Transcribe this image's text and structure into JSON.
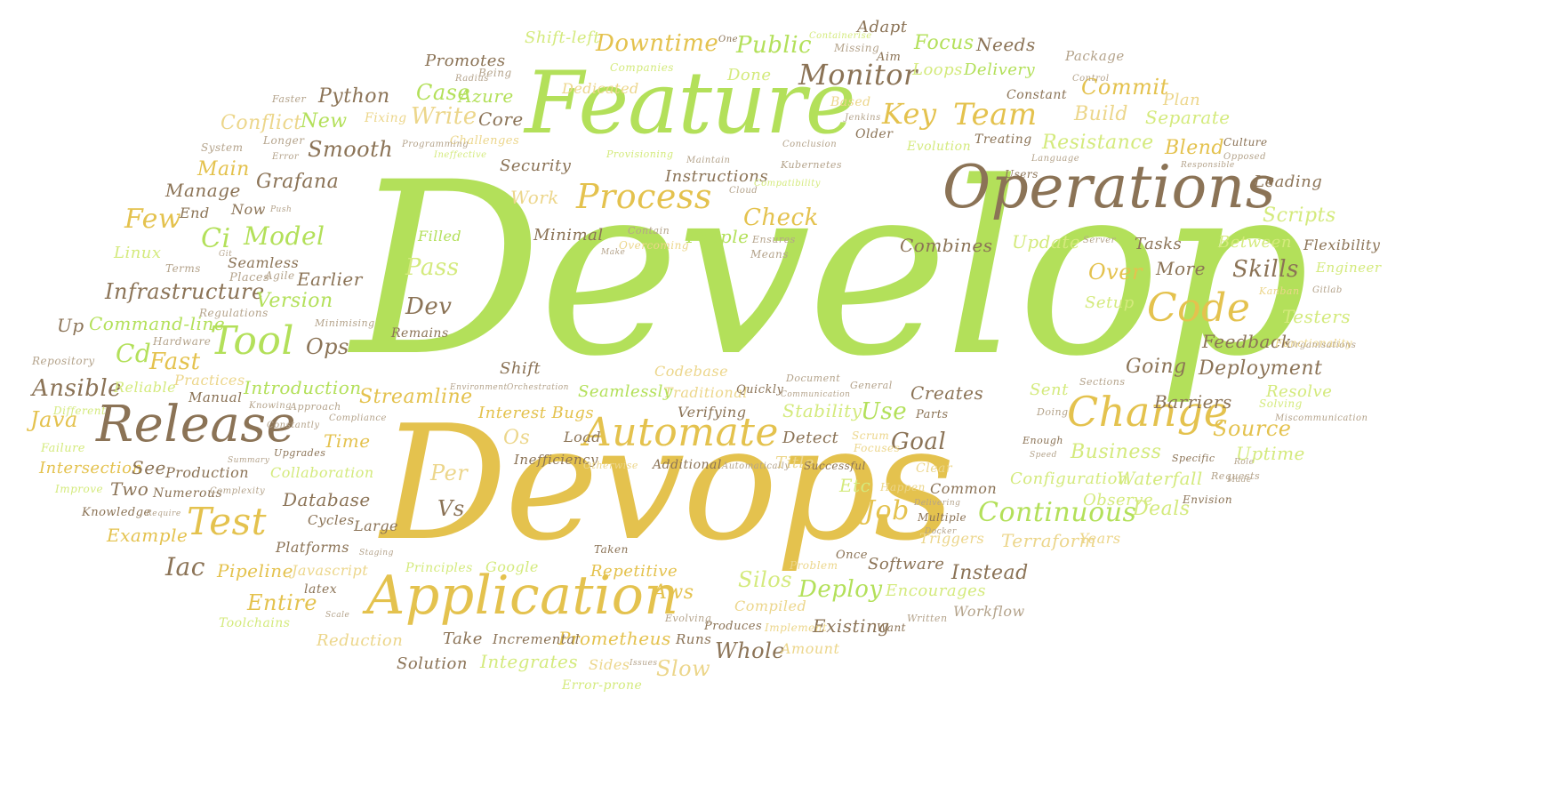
{
  "title": "",
  "palette": {
    "green": "#b3e05a",
    "gold": "#e4c24e",
    "brown": "#8b7356",
    "light_green": "#d4ea7d",
    "light_gold": "#ecd68b",
    "light_brown": "#b4a38b",
    "background": "#ffffff"
  },
  "words": {
    "develop": "Develop",
    "devops": "Devops",
    "feature": "Feature",
    "operations": "Operations",
    "release": "Release",
    "application": "Application",
    "automate": "Automate",
    "change": "Change",
    "code": "Code",
    "test": "Test",
    "tool": "Tool",
    "process": "Process",
    "monitor": "Monitor",
    "continuous": "Continuous",
    "team": "Team",
    "key": "Key",
    "downtime": "Downtime",
    "public": "Public",
    "focus": "Focus",
    "needs": "Needs",
    "adapt": "Adapt",
    "shift_left": "Shift-left",
    "promotes": "Promotes",
    "python": "Python",
    "conflict": "Conflict",
    "new": "New",
    "write": "Write",
    "case": "Case",
    "azure": "Azure",
    "core": "Core",
    "commit": "Commit",
    "build": "Build",
    "separate": "Separate",
    "resistance": "Resistance",
    "blend": "Blend",
    "delivery": "Delivery",
    "loops": "Loops",
    "done": "Done",
    "dedicated": "Dedicated",
    "package": "Package",
    "plan": "Plan",
    "smooth": "Smooth",
    "main": "Main",
    "manage": "Manage",
    "grafana": "Grafana",
    "security": "Security",
    "instructions": "Instructions",
    "check": "Check",
    "few": "Few",
    "end": "End",
    "now": "Now",
    "ci": "Ci",
    "model": "Model",
    "work": "Work",
    "minimal": "Minimal",
    "people": "People",
    "filled": "Filled",
    "pass": "Pass",
    "linux": "Linux",
    "seamless": "Seamless",
    "infrastructure": "Infrastructure",
    "earlier": "Earlier",
    "version": "Version",
    "dev": "Dev",
    "up": "Up",
    "command_line": "Command-line",
    "cd": "Cd",
    "fast": "Fast",
    "ops": "Ops",
    "ansible": "Ansible",
    "reliable": "Reliable",
    "practices": "Practices",
    "introduction": "Introduction",
    "streamline": "Streamline",
    "java": "Java",
    "manual": "Manual",
    "shift": "Shift",
    "codebase": "Codebase",
    "traditional": "Traditional",
    "seamlessly": "Seamlessly",
    "interest_bugs": "Interest Bugs",
    "verifying": "Verifying",
    "stability": "Stability",
    "use": "Use",
    "creates": "Creates",
    "combines": "Combines",
    "update": "Update",
    "tasks": "Tasks",
    "between": "Between",
    "flexibility": "Flexibility",
    "scripts": "Scripts",
    "leading": "Leading",
    "over": "Over",
    "more": "More",
    "skills": "Skills",
    "engineer": "Engineer",
    "setup": "Setup",
    "testers": "Testers",
    "feedback": "Feedback",
    "going": "Going",
    "deployment": "Deployment",
    "barriers": "Barriers",
    "sent": "Sent",
    "resolve": "Resolve",
    "source": "Source",
    "goal": "Goal",
    "business": "Business",
    "uptime": "Uptime",
    "configuration": "Configuration",
    "waterfall": "Waterfall",
    "observe": "Observe",
    "deals": "Deals",
    "terraform": "Terraform",
    "years": "Years",
    "job": "Job",
    "etc": "Etc",
    "per": "Per",
    "vs": "Vs",
    "os": "Os",
    "load": "Load",
    "detect": "Detect",
    "title_w": "Title",
    "time": "Time",
    "intersection": "Intersection",
    "see": "See",
    "production": "Production",
    "two": "Two",
    "collaboration": "Collaboration",
    "database": "Database",
    "example": "Example",
    "iac": "Iac",
    "pipeline": "Pipeline",
    "javascript": "Javascript",
    "platforms": "Platforms",
    "cycles": "Cycles",
    "large": "Large",
    "entire": "Entire",
    "aws": "Aws",
    "repetitive": "Repetitive",
    "silos": "Silos",
    "deploy": "Deploy",
    "software": "Software",
    "instead": "Instead",
    "encourages": "Encourages",
    "compiled": "Compiled",
    "existing": "Existing",
    "prometheus": "Prometheus",
    "whole": "Whole",
    "slow": "Slow",
    "integrates": "Integrates",
    "solution": "Solution",
    "take": "Take",
    "incremental": "Incremental",
    "reduction": "Reduction",
    "google": "Google",
    "principles": "Principles",
    "inefficiency": "Inefficiency",
    "additional": "Additional",
    "numerous": "Numerous",
    "common": "Common",
    "triggers": "Triggers",
    "workflow": "Workflow",
    "amount": "Amount",
    "runs": "Runs",
    "sides": "Sides",
    "error_prone": "Error-prone",
    "toolchains": "Toolchains",
    "latex": "latex",
    "knowledge": "Knowledge",
    "improve": "Improve",
    "failure": "Failure",
    "different": "Different",
    "repository": "Repository",
    "hardware": "Hardware",
    "regulations": "Regulations",
    "places": "Places",
    "agile": "Agile",
    "terms": "Terms",
    "remains": "Remains",
    "minimising": "Minimising",
    "system": "System",
    "error": "Error",
    "longer": "Longer",
    "faster": "Faster",
    "fixing": "Fixing",
    "being": "Being",
    "radius": "Radius",
    "companies": "Companies",
    "containerise": "Containerise",
    "missing": "Missing",
    "aim": "Aim",
    "one": "One",
    "constant": "Constant",
    "control": "Control",
    "based": "Based",
    "jenkins": "Jenkins",
    "older": "Older",
    "conclusion": "Conclusion",
    "kubernetes": "Kubernetes",
    "evolution": "Evolution",
    "treating": "Treating",
    "users": "Users",
    "language": "Language",
    "culture": "Culture",
    "opposed": "Opposed",
    "responsible": "Responsible",
    "challenges": "Challenges",
    "ineffective": "Ineffective",
    "programming": "Programming",
    "provisioning": "Provisioning",
    "maintain": "Maintain",
    "cloud": "Cloud",
    "compatibility": "Compatibility",
    "contain": "Contain",
    "overcoming": "Overcoming",
    "make": "Make",
    "ensures": "Ensures",
    "means": "Means",
    "server": "Server",
    "kanban": "Kanban",
    "gitlab": "Gitlab",
    "functionality": "Functionality",
    "organisations": "Organisations",
    "sections": "Sections",
    "solving": "Solving",
    "miscommunication": "Miscommunication",
    "doing": "Doing",
    "enough": "Enough",
    "specific": "Specific",
    "speed": "Speed",
    "requests": "Requests",
    "envision": "Envision",
    "role": "Role",
    "made": "Made",
    "happen": "Happen",
    "delivering": "Delivering",
    "multiple": "Multiple",
    "docker": "Docker",
    "written": "Written",
    "once": "Once",
    "problem": "Problem",
    "taken": "Taken",
    "produces": "Produces",
    "implement": "Implement",
    "want": "Want",
    "evolving": "Evolving",
    "issues": "Issues",
    "scale": "Scale",
    "document": "Document",
    "communication": "Communication",
    "general": "General",
    "quickly": "Quickly",
    "orchestration": "Orchestration",
    "environment": "Environment",
    "knowing": "Knowing",
    "approach": "Approach",
    "compliance": "Compliance",
    "constantly": "Constantly",
    "upgrades": "Upgrades",
    "summary": "Summary",
    "complexity": "Complexity",
    "require": "Require",
    "staging": "Staging",
    "otherwise": "Otherwise",
    "automatically": "Automatically",
    "successful": "Successful",
    "focuses": "Focuses",
    "scrum": "Scrum",
    "clear": "Clear",
    "parts": "Parts",
    "git": "Git",
    "push": "Push"
  }
}
